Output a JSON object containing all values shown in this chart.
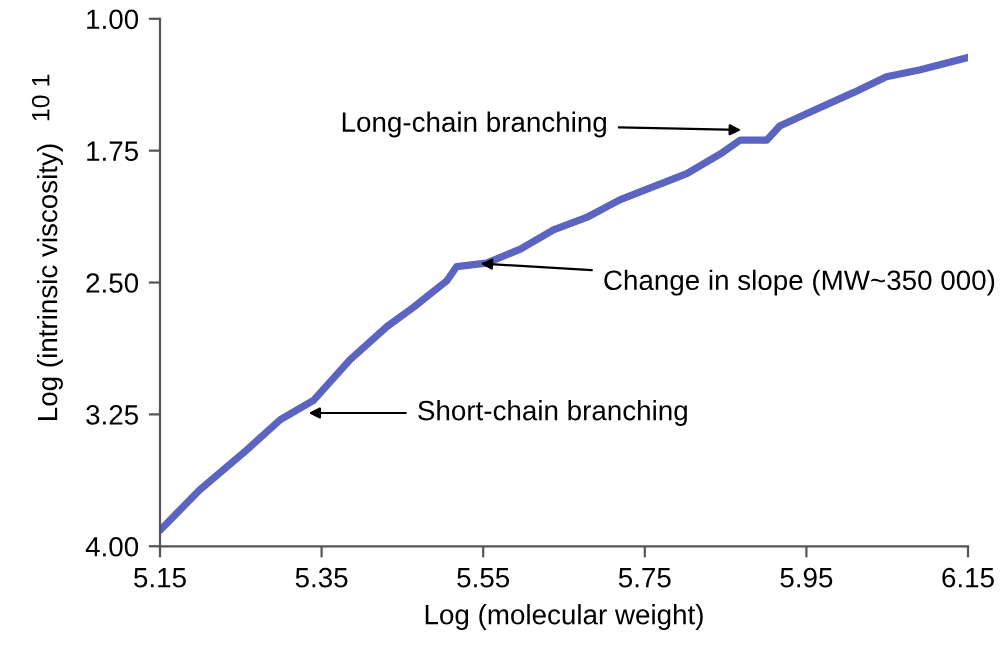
{
  "chart_data": {
    "type": "line",
    "xlabel": "Log (molecular weight)",
    "ylabel": "Log (intrinsic viscosity)",
    "x": [
      5.152,
      5.199,
      5.253,
      5.299,
      5.34,
      5.385,
      5.431,
      5.464,
      5.505,
      5.517,
      5.554,
      5.596,
      5.637,
      5.678,
      5.719,
      5.752,
      5.802,
      5.843,
      5.868,
      5.901,
      5.917,
      5.95,
      6.008,
      6.049,
      6.091,
      6.15
    ],
    "series": [
      {
        "color": "#5b64c0",
        "values": [
          3.9,
          3.68,
          3.47,
          3.28,
          3.17,
          2.94,
          2.75,
          2.64,
          2.49,
          2.41,
          2.39,
          2.31,
          2.2,
          2.13,
          2.03,
          1.97,
          1.88,
          1.77,
          1.69,
          1.69,
          1.61,
          1.54,
          1.42,
          1.33,
          1.29,
          1.22
        ]
      }
    ],
    "xlim": [
      5.15,
      6.15
    ],
    "xticks": [
      5.15,
      5.35,
      5.55,
      5.75,
      5.95,
      6.15
    ],
    "ylim": [
      4.0,
      1.0
    ],
    "yticks": [
      {
        "value": 1.0,
        "label": "1.00"
      },
      {
        "value": 1.75,
        "label": "1.75"
      },
      {
        "value": 2.5,
        "label": "2.50"
      },
      {
        "value": 3.25,
        "label": "3.25"
      },
      {
        "value": 4.0,
        "label": "4.00"
      }
    ],
    "annotations": [
      {
        "text": "Long-chain branching",
        "x": 5.876,
        "y": 1.633
      },
      {
        "text": "Change in slope (MW~350 000)",
        "x": 5.54,
        "y": 2.39
      },
      {
        "text": "Short-chain branching",
        "x": 5.327,
        "y": 3.242
      },
      "10 1"
    ],
    "grid": false,
    "legend": false,
    "marker": "none",
    "line_style": "solid"
  }
}
